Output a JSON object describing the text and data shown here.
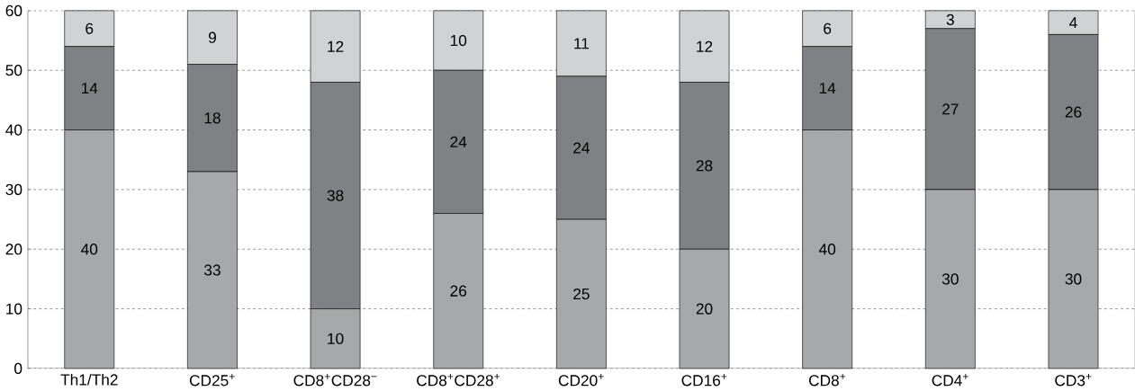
{
  "chart_data": {
    "type": "bar",
    "stacked": true,
    "categories": [
      "Th1/Th2",
      "CD25$^{+}$",
      "CD8$^{+}$CD28$^{−}$",
      "CD8$^{+}$CD28$^{+}$",
      "CD20$^{+}$",
      "CD16$^{+}$",
      "CD8$^{+}$",
      "CD4$^{+}$",
      "CD3$^{+}$"
    ],
    "series": [
      {
        "color": "#a7a8aa",
        "values": [
          40,
          33,
          10,
          26,
          25,
          20,
          40,
          30,
          30
        ]
      },
      {
        "color": "#808184",
        "values": [
          14,
          18,
          38,
          24,
          24,
          28,
          14,
          27,
          26
        ]
      },
      {
        "color": "#d1d2d4",
        "values": [
          6,
          9,
          12,
          10,
          11,
          12,
          6,
          3,
          4
        ]
      }
    ],
    "ylim": [
      0,
      60
    ],
    "yticks": [
      0,
      10,
      20,
      30,
      40,
      50,
      60
    ],
    "grid": "y",
    "line_style": "dashed",
    "data_labels": true
  }
}
